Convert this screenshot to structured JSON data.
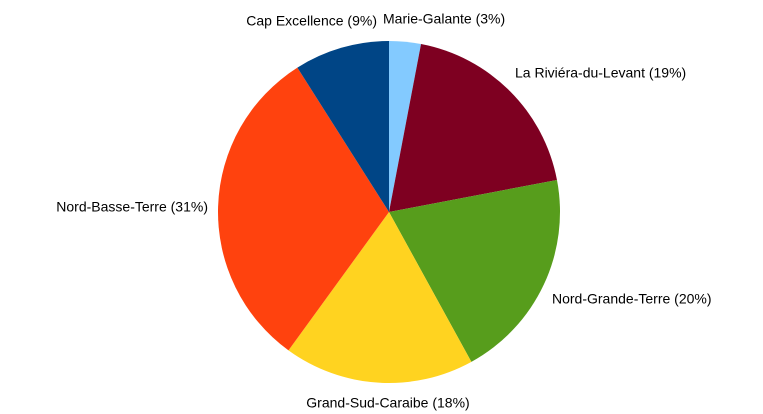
{
  "chart_data": {
    "type": "pie",
    "categories": [
      "Marie-Galante (3%)",
      "La Riviéra-du-Levant (19%)",
      "Nord-Grande-Terre (20%)",
      "Grand-Sud-Caraibe (18%)",
      "Nord-Basse-Terre (31%)",
      "Cap Excellence (9%)"
    ],
    "values": [
      3,
      19,
      20,
      18,
      31,
      9
    ],
    "colors": [
      "#83caff",
      "#7e0021",
      "#579d1c",
      "#ffd320",
      "#ff420e",
      "#004586"
    ]
  }
}
